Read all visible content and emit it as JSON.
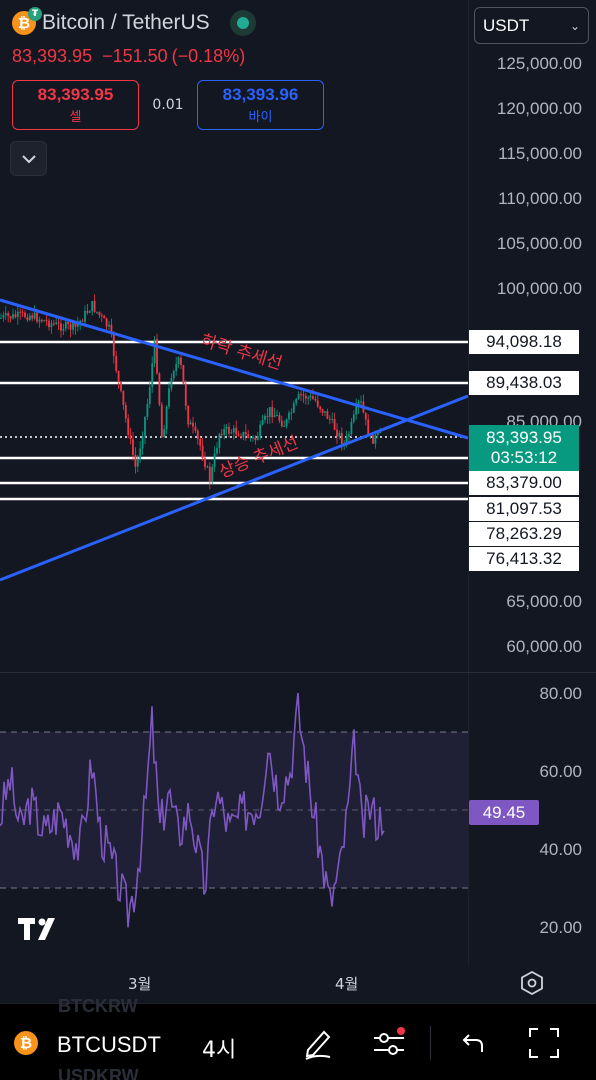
{
  "header": {
    "title": "Bitcoin / TetherUS",
    "last_price": "83,393.95",
    "change": "−151.50",
    "change_pct": "(−0.18%)",
    "status": "live",
    "coin_icon": "bitcoin-icon"
  },
  "trade": {
    "sell_price": "83,393.95",
    "sell_label": "셀",
    "spread": "0.01",
    "buy_price": "83,393.96",
    "buy_label": "바이"
  },
  "currency": {
    "selected": "USDT"
  },
  "price_axis": {
    "labels": [
      "125,000.00",
      "120,000.00",
      "115,000.00",
      "110,000.00",
      "105,000.00",
      "100,000.00",
      "85,000.00",
      "65,000.00",
      "60,000.00"
    ]
  },
  "horizontal_levels": [
    "94,098.18",
    "89,438.03",
    "83,379.00",
    "81,097.53",
    "78,263.29",
    "76,413.32"
  ],
  "current_price": {
    "price": "83,393.95",
    "countdown": "03:53:12"
  },
  "annotations": {
    "downtrend": "하락 추세선",
    "uptrend": "상승 추세선"
  },
  "rsi": {
    "axis_labels": [
      "80.00",
      "60.00",
      "40.00",
      "20.00"
    ],
    "value": "49.45",
    "upper_band": 70,
    "lower_band": 30
  },
  "time_axis": [
    "3월",
    "4월"
  ],
  "bottom_bar": {
    "symbol": "BTCUSDT",
    "interval": "4시",
    "ghost_symbols": [
      "BTCKRW",
      "USDKRW"
    ]
  },
  "colors": {
    "background": "#131722",
    "down": "#f23645",
    "up": "#089981",
    "trendline": "#2962ff",
    "rsi": "#7e57c2"
  }
}
